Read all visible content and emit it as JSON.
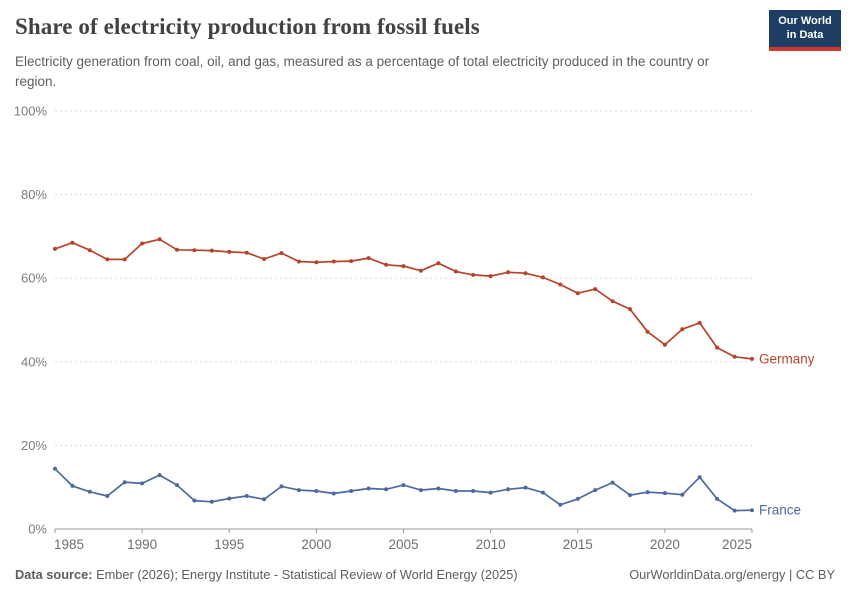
{
  "header": {
    "title": "Share of electricity production from fossil fuels",
    "subtitle": "Electricity generation from coal, oil, and gas, measured as a percentage of total electricity produced in the country or region.",
    "logo": {
      "line1": "Our World",
      "line2": "in Data"
    }
  },
  "footer": {
    "source_label": "Data source:",
    "source_text": " Ember (2026); Energy Institute - Statistical Review of World Energy (2025)",
    "right_text": "OurWorldinData.org/energy | CC BY"
  },
  "chart_data": {
    "type": "line",
    "title": "Share of electricity production from fossil fuels",
    "x": [
      1985,
      1986,
      1987,
      1988,
      1989,
      1990,
      1991,
      1992,
      1993,
      1994,
      1995,
      1996,
      1997,
      1998,
      1999,
      2000,
      2001,
      2002,
      2003,
      2004,
      2005,
      2006,
      2007,
      2008,
      2009,
      2010,
      2011,
      2012,
      2013,
      2014,
      2015,
      2016,
      2017,
      2018,
      2019,
      2020,
      2021,
      2022,
      2023,
      2024,
      2025
    ],
    "series": [
      {
        "name": "Germany",
        "color": "#b5432c",
        "values": [
          67.0,
          68.5,
          66.7,
          64.5,
          64.5,
          68.3,
          69.3,
          66.8,
          66.7,
          66.6,
          66.3,
          66.1,
          64.6,
          66.0,
          64.0,
          63.8,
          64.0,
          64.1,
          64.8,
          63.2,
          62.9,
          61.8,
          63.6,
          61.6,
          60.8,
          60.5,
          61.4,
          61.2,
          60.2,
          58.5,
          56.4,
          57.4,
          54.5,
          52.6,
          47.2,
          44.1,
          47.8,
          49.3,
          43.4,
          41.2,
          40.7
        ]
      },
      {
        "name": "France",
        "color": "#4c6a9c",
        "values": [
          14.4,
          10.3,
          8.9,
          7.9,
          11.2,
          10.9,
          12.9,
          10.5,
          6.8,
          6.5,
          7.3,
          7.9,
          7.1,
          10.2,
          9.3,
          9.1,
          8.5,
          9.1,
          9.7,
          9.5,
          10.5,
          9.3,
          9.7,
          9.1,
          9.1,
          8.7,
          9.5,
          9.9,
          8.7,
          5.8,
          7.2,
          9.3,
          11.1,
          8.1,
          8.8,
          8.6,
          8.2,
          12.4,
          7.2,
          4.4,
          4.5
        ]
      }
    ],
    "xlim": [
      1985,
      2025
    ],
    "ylim": [
      0,
      100
    ],
    "xticks": [
      1985,
      1990,
      1995,
      2000,
      2005,
      2010,
      2015,
      2020,
      2025
    ],
    "yticks": [
      0,
      20,
      40,
      60,
      80,
      100
    ],
    "ytick_suffix": "%",
    "grid": "dashed-horizontal",
    "legend_position": "end-of-line",
    "axis_color": "#9a9a9a",
    "grid_color": "#dadada",
    "tick_label_color": "#7c7c7c"
  }
}
